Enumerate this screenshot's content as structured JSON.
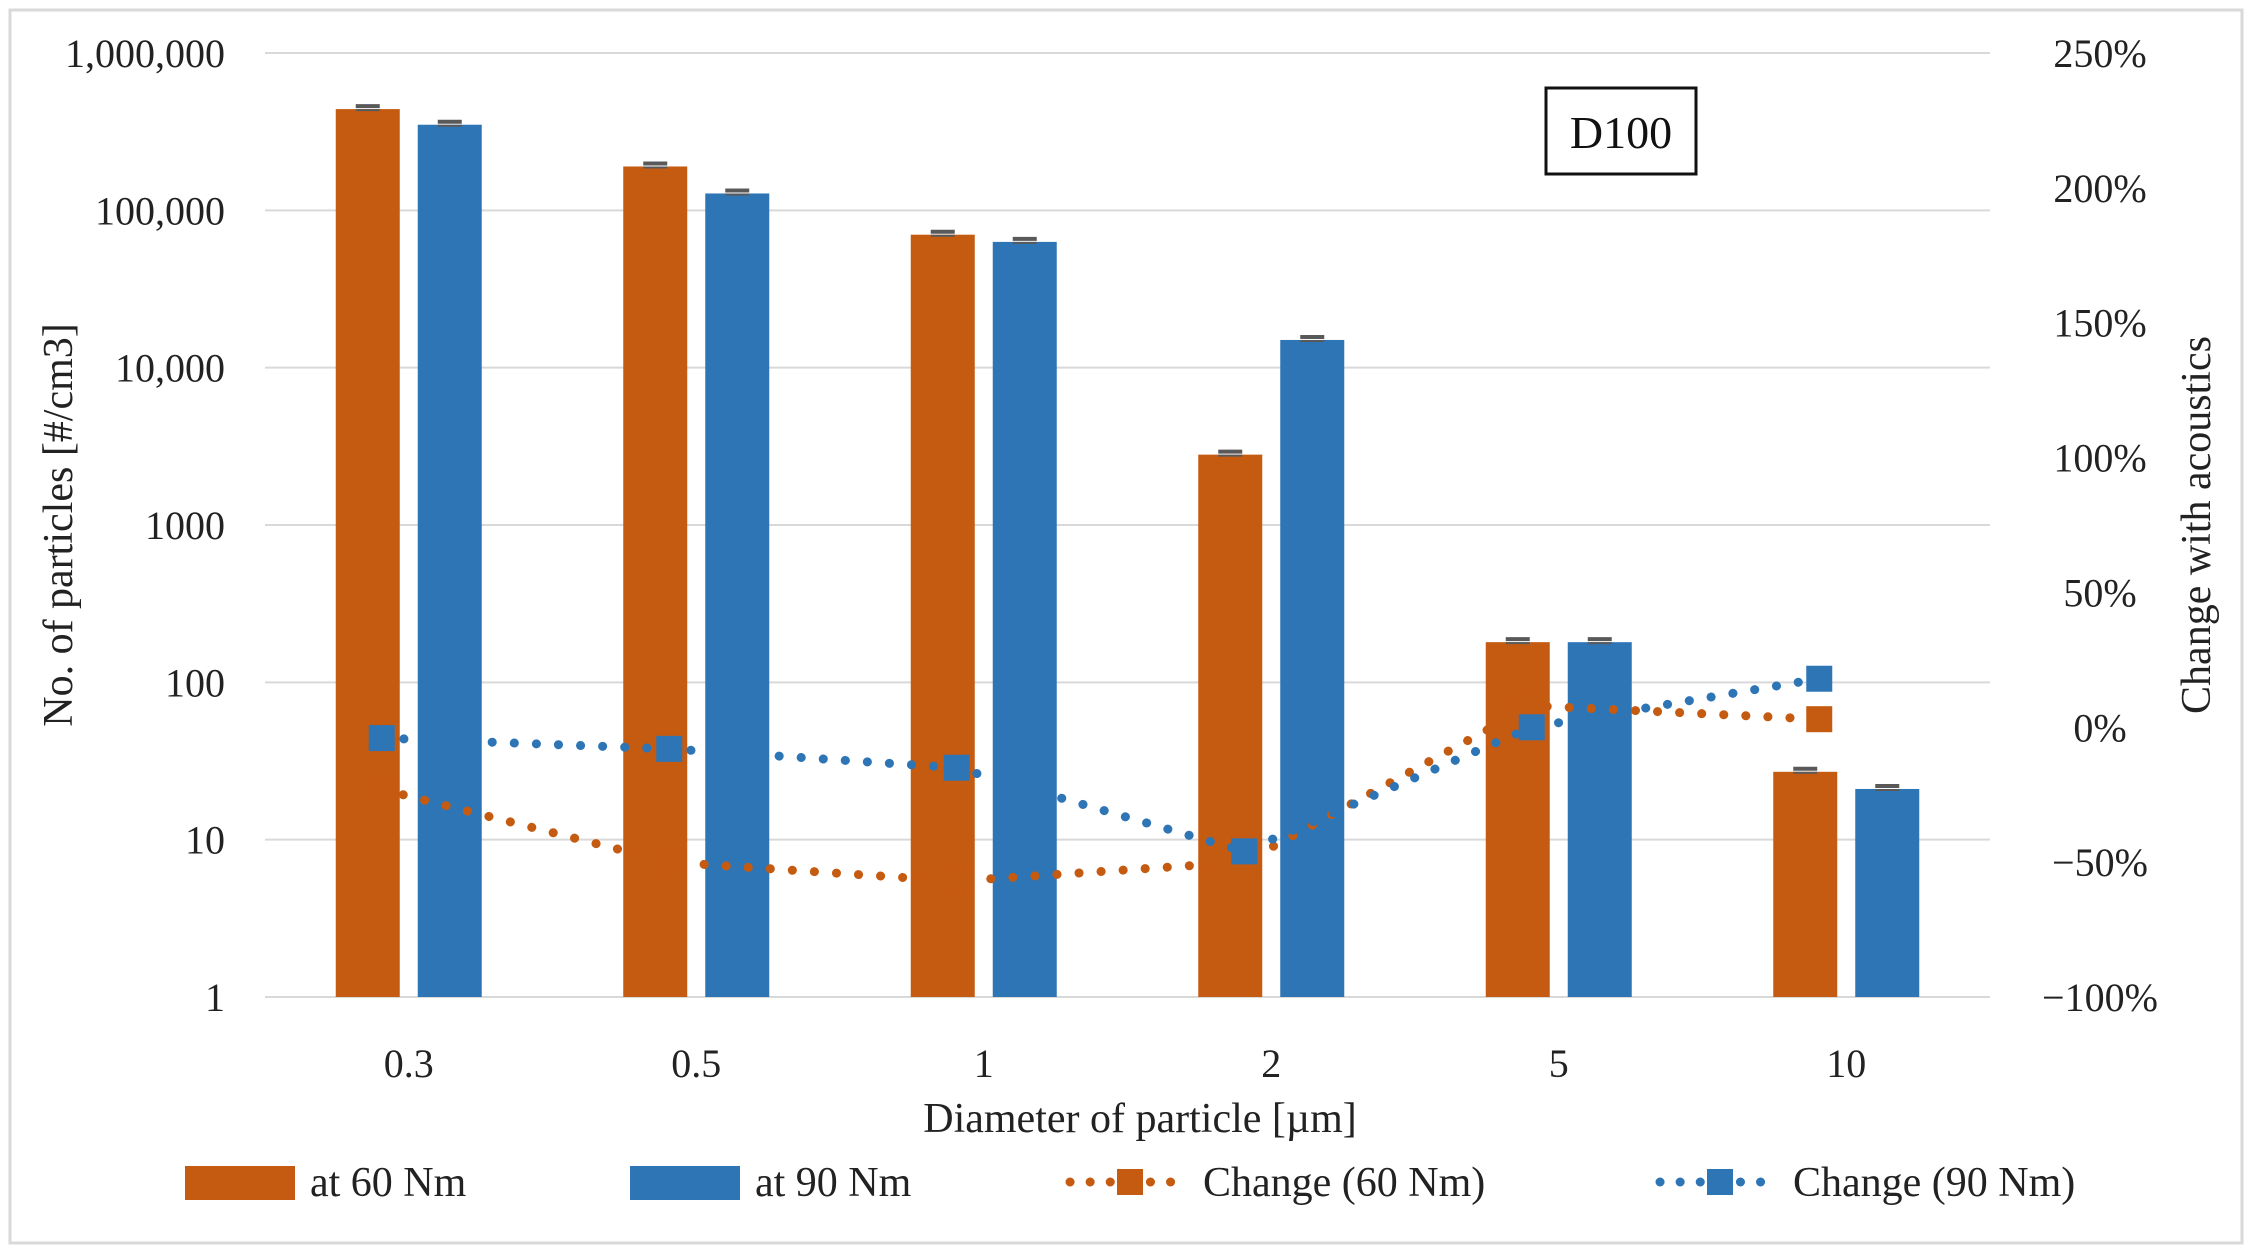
{
  "chart_data": {
    "type": "bar",
    "categories": [
      "0.3",
      "0.5",
      "1",
      "2",
      "5",
      "10"
    ],
    "xlabel": "Diameter of particle [µm]",
    "ylabel": "No. of particles [#/cm3]",
    "y2label": "Change with acoustics",
    "y_scale": "log",
    "ylim": [
      1,
      1000000
    ],
    "y_ticks": [
      "1",
      "10",
      "100",
      "1000",
      "10,000",
      "100,000",
      "1,000,000"
    ],
    "y2lim": [
      -100,
      250
    ],
    "y2_ticks": [
      "250%",
      "200%",
      "150%",
      "100%",
      "50%",
      "0%",
      "−50%",
      "−100%"
    ],
    "grid": true,
    "legend_position": "bottom",
    "annotation": "D100",
    "colors": {
      "orange": "#C55A11",
      "blue": "#2E75B6",
      "errbar": "#595959",
      "grid": "#D9D9D9"
    },
    "bar_series": [
      {
        "name": "at 60 Nm",
        "color": "#C55A11",
        "values": [
          440000,
          190000,
          70000,
          2800,
          180,
          27
        ]
      },
      {
        "name": "at 90 Nm",
        "color": "#2E75B6",
        "values": [
          350000,
          128000,
          63000,
          15000,
          180,
          21
        ]
      }
    ],
    "line_series": [
      {
        "name": "Change (60 Nm)",
        "color": "#C55A11",
        "values": [
          -23,
          -50,
          -57,
          -50,
          8,
          3
        ]
      },
      {
        "name": "Change (90 Nm)",
        "color": "#2E75B6",
        "values": [
          -4,
          -8,
          -15,
          -46,
          0,
          18
        ]
      }
    ]
  }
}
